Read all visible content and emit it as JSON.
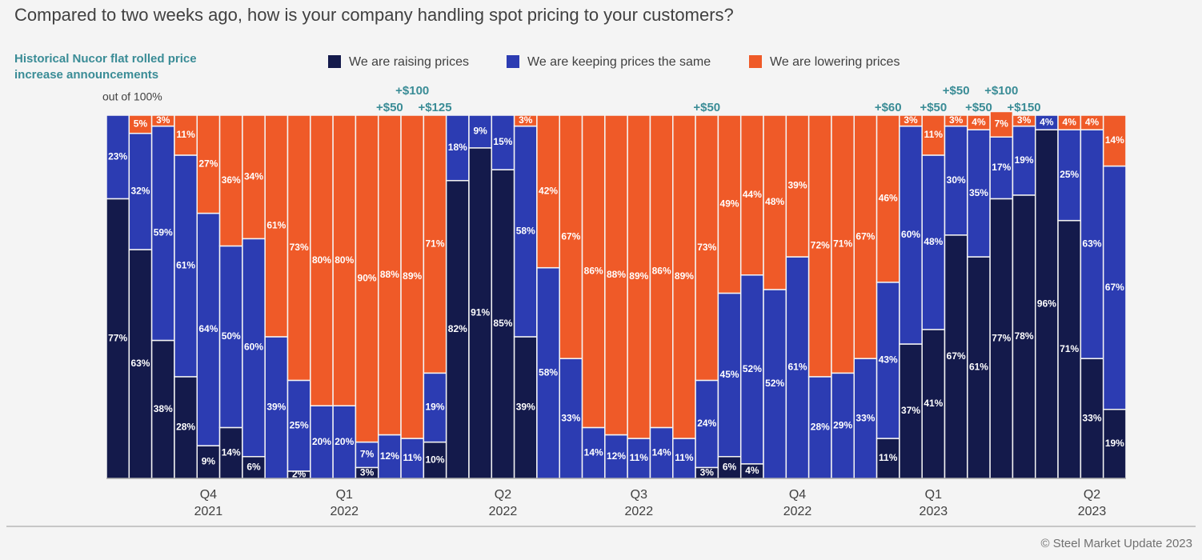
{
  "chart_data": {
    "type": "stacked-bar",
    "title": "Compared to two weeks ago, how is your company handling spot pricing to your customers?",
    "subtitle": "Historical Nucor flat rolled price increase announcements",
    "y_label": "out of 100%",
    "footer": "© Steel Market Update 2023",
    "ylim": [
      0,
      100
    ],
    "categories": [
      null,
      null,
      null,
      null,
      "Q4",
      null,
      null,
      null,
      null,
      null,
      "Q1",
      null,
      null,
      null,
      null,
      null,
      null,
      "Q2",
      null,
      null,
      null,
      null,
      null,
      "Q3",
      null,
      null,
      null,
      null,
      null,
      null,
      "Q4",
      null,
      null,
      null,
      null,
      null,
      "Q1",
      null,
      null,
      null,
      null,
      null,
      null,
      "Q2",
      null
    ],
    "category_years": [
      null,
      null,
      null,
      null,
      "2021",
      null,
      null,
      null,
      null,
      null,
      "2022",
      null,
      null,
      null,
      null,
      null,
      null,
      "2022",
      null,
      null,
      null,
      null,
      null,
      "2022",
      null,
      null,
      null,
      null,
      null,
      null,
      "2022",
      null,
      null,
      null,
      null,
      null,
      "2023",
      null,
      null,
      null,
      null,
      null,
      null,
      "2023",
      null
    ],
    "announcements": [
      null,
      null,
      null,
      null,
      null,
      null,
      null,
      null,
      null,
      null,
      null,
      null,
      "+$50",
      "+$100",
      "+$125",
      null,
      null,
      null,
      null,
      null,
      null,
      null,
      null,
      null,
      null,
      null,
      "+$50",
      null,
      null,
      null,
      null,
      null,
      null,
      null,
      "+$60",
      null,
      "+$50",
      "+$50",
      "+$50",
      "+$100",
      "+$150",
      null,
      null,
      null,
      null
    ],
    "series": [
      {
        "name": "We are raising prices",
        "color": "#141a4b",
        "values": [
          77,
          63,
          38,
          28,
          9,
          14,
          6,
          0,
          2,
          0,
          0,
          3,
          0,
          0,
          10,
          82,
          91,
          85,
          39,
          0,
          0,
          0,
          0,
          0,
          0,
          0,
          3,
          6,
          4,
          0,
          0,
          0,
          0,
          0,
          11,
          37,
          41,
          67,
          61,
          77,
          78,
          96,
          71,
          33,
          19
        ],
        "value_labels": [
          "77%",
          "63%",
          "38%",
          "28%",
          "9%",
          "14%",
          "6%",
          null,
          "2%",
          null,
          null,
          "3%",
          null,
          null,
          "10%",
          "82%",
          "91%",
          "85%",
          "39%",
          null,
          null,
          null,
          null,
          null,
          null,
          null,
          "3%",
          "6%",
          "4%",
          null,
          null,
          null,
          null,
          null,
          "11%",
          "37%",
          "41%",
          "67%",
          "61%",
          "77%",
          "78%",
          "96%",
          "71%",
          "33%",
          "19%"
        ]
      },
      {
        "name": "We are keeping prices the same",
        "color": "#2c3cb2",
        "values": [
          23,
          32,
          59,
          61,
          64,
          50,
          60,
          39,
          25,
          20,
          20,
          7,
          12,
          11,
          19,
          18,
          9,
          15,
          58,
          58,
          33,
          14,
          12,
          11,
          14,
          11,
          24,
          45,
          52,
          52,
          61,
          28,
          29,
          33,
          43,
          60,
          48,
          30,
          35,
          17,
          19,
          4,
          25,
          63,
          67
        ],
        "value_labels": [
          "23%",
          "32%",
          "59%",
          "61%",
          "64%",
          "50%",
          "60%",
          "39%",
          "25%",
          "20%",
          "20%",
          "7%",
          "12%",
          "11%",
          "19%",
          "18%",
          "9%",
          "15%",
          "58%",
          "58%",
          "33%",
          "14%",
          "12%",
          "11%",
          "14%",
          "11%",
          "24%",
          "45%",
          "52%",
          "52%",
          "61%",
          "28%",
          "29%",
          "33%",
          "43%",
          "60%",
          "48%",
          "30%",
          "35%",
          "17%",
          "19%",
          "4%",
          "25%",
          "63%",
          "67%"
        ]
      },
      {
        "name": "We are lowering prices",
        "color": "#ef5a28",
        "values": [
          0,
          5,
          3,
          11,
          27,
          36,
          34,
          61,
          73,
          80,
          80,
          90,
          88,
          89,
          71,
          0,
          0,
          0,
          3,
          42,
          67,
          86,
          88,
          89,
          86,
          89,
          73,
          49,
          44,
          48,
          39,
          72,
          71,
          67,
          46,
          3,
          11,
          3,
          4,
          7,
          3,
          0,
          4,
          4,
          14
        ],
        "value_labels": [
          null,
          "5%",
          "3%",
          "11%",
          "27%",
          "36%",
          "34%",
          "61%",
          "73%",
          "80%",
          "80%",
          "90%",
          "88%",
          "89%",
          "71%",
          null,
          null,
          null,
          "3%",
          "42%",
          "67%",
          "86%",
          "88%",
          "89%",
          "86%",
          "89%",
          "73%",
          "49%",
          "44%",
          "48%",
          "39%",
          "72%",
          "71%",
          "67%",
          "46%",
          "3%",
          "11%",
          "3%",
          "4%",
          "7%",
          "3%",
          null,
          "4%",
          "4%",
          "14%"
        ]
      }
    ]
  }
}
